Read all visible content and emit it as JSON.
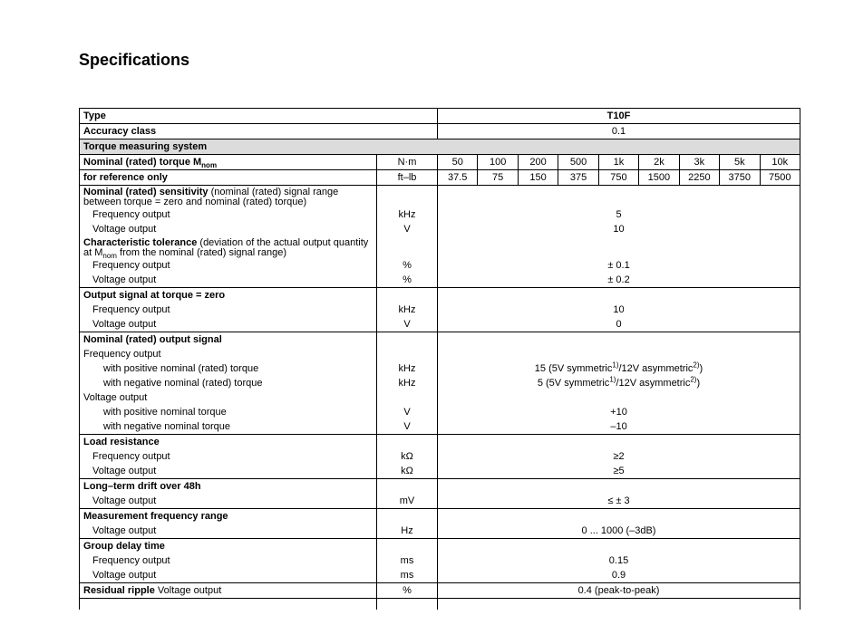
{
  "title": "Specifications",
  "type_row": {
    "label": "Type",
    "value": "T10F"
  },
  "accuracy_row": {
    "label": "Accuracy class",
    "value": "0.1"
  },
  "section": "Torque measuring system",
  "torque_row": {
    "label": [
      {
        "t": "Nominal (rated) torque M",
        "b": true
      },
      {
        "t": "nom",
        "b": true,
        "sub": true
      }
    ],
    "unit": "N·m",
    "values": [
      "50",
      "100",
      "200",
      "500",
      "1k",
      "2k",
      "3k",
      "5k",
      "10k"
    ]
  },
  "ref_row": {
    "label": [
      {
        "t": "for reference only",
        "b": true
      }
    ],
    "unit": "ft–lb",
    "values": [
      "37.5",
      "75",
      "150",
      "375",
      "750",
      "1500",
      "2250",
      "3750",
      "7500"
    ]
  },
  "blocks": [
    {
      "lines": [
        {
          "label": [
            {
              "t": "Nominal (rated) sensitivity",
              "b": true
            },
            {
              "t": " (nominal (rated) signal range between torque = zero and nominal (rated) torque)"
            }
          ],
          "wrap": true,
          "unit": "",
          "value": []
        },
        {
          "label": [
            {
              "t": "Frequency output"
            }
          ],
          "indent": 1,
          "unit": "kHz",
          "value": [
            {
              "t": "5"
            }
          ]
        },
        {
          "label": [
            {
              "t": "Voltage output"
            }
          ],
          "indent": 1,
          "unit": "V",
          "value": [
            {
              "t": "10"
            }
          ]
        },
        {
          "label": [
            {
              "t": "Characteristic tolerance",
              "b": true
            },
            {
              "t": " (deviation of the actual output quantity at M"
            },
            {
              "t": "nom",
              "sub": true
            },
            {
              "t": " from the nominal (rated) signal range)"
            }
          ],
          "wrap": true,
          "unit": "",
          "value": []
        },
        {
          "label": [
            {
              "t": "Frequency output"
            }
          ],
          "indent": 1,
          "unit": "%",
          "value": [
            {
              "t": "± 0.1"
            }
          ]
        },
        {
          "label": [
            {
              "t": "Voltage output"
            }
          ],
          "indent": 1,
          "unit": "%",
          "value": [
            {
              "t": "± 0.2"
            }
          ]
        }
      ]
    },
    {
      "lines": [
        {
          "label": [
            {
              "t": "Output signal at torque = zero",
              "b": true
            }
          ],
          "unit": "",
          "value": []
        },
        {
          "label": [
            {
              "t": "Frequency output"
            }
          ],
          "indent": 1,
          "unit": "kHz",
          "value": [
            {
              "t": "10"
            }
          ]
        },
        {
          "label": [
            {
              "t": "Voltage output"
            }
          ],
          "indent": 1,
          "unit": "V",
          "value": [
            {
              "t": "0"
            }
          ]
        }
      ]
    },
    {
      "lines": [
        {
          "label": [
            {
              "t": "Nominal (rated) output signal",
              "b": true
            }
          ],
          "unit": "",
          "value": []
        },
        {
          "label": [
            {
              "t": "Frequency output"
            }
          ],
          "unit": "",
          "value": []
        },
        {
          "label": [
            {
              "t": "with positive nominal (rated) torque"
            }
          ],
          "indent": 2,
          "unit": "kHz",
          "value": [
            {
              "t": "15 (5V symmetric"
            },
            {
              "t": "1)",
              "sup": true
            },
            {
              "t": "/12V asymmetric"
            },
            {
              "t": "2)",
              "sup": true
            },
            {
              "t": ")"
            }
          ]
        },
        {
          "label": [
            {
              "t": "with negative nominal (rated) torque"
            }
          ],
          "indent": 2,
          "unit": "kHz",
          "value": [
            {
              "t": "5 (5V symmetric"
            },
            {
              "t": "1)",
              "sup": true
            },
            {
              "t": "/12V asymmetric"
            },
            {
              "t": "2)",
              "sup": true
            },
            {
              "t": ")"
            }
          ]
        },
        {
          "label": [
            {
              "t": "Voltage output"
            }
          ],
          "unit": "",
          "value": []
        },
        {
          "label": [
            {
              "t": "with positive nominal torque"
            }
          ],
          "indent": 2,
          "unit": "V",
          "value": [
            {
              "t": "+10"
            }
          ]
        },
        {
          "label": [
            {
              "t": "with negative nominal torque"
            }
          ],
          "indent": 2,
          "unit": "V",
          "value": [
            {
              "t": "–10"
            }
          ]
        }
      ]
    },
    {
      "lines": [
        {
          "label": [
            {
              "t": "Load resistance",
              "b": true
            }
          ],
          "unit": "",
          "value": []
        },
        {
          "label": [
            {
              "t": "Frequency output"
            }
          ],
          "indent": 1,
          "unit": "kΩ",
          "value": [
            {
              "t": "≥2"
            }
          ]
        },
        {
          "label": [
            {
              "t": "Voltage output"
            }
          ],
          "indent": 1,
          "unit": "kΩ",
          "value": [
            {
              "t": "≥5"
            }
          ]
        }
      ]
    },
    {
      "lines": [
        {
          "label": [
            {
              "t": "Long–term drift over 48h",
              "b": true
            }
          ],
          "unit": "",
          "value": []
        },
        {
          "label": [
            {
              "t": "Voltage output"
            }
          ],
          "indent": 1,
          "unit": "mV",
          "value": [
            {
              "t": "≤ ± 3"
            }
          ]
        }
      ]
    },
    {
      "lines": [
        {
          "label": [
            {
              "t": "Measurement frequency range",
              "b": true
            }
          ],
          "unit": "",
          "value": []
        },
        {
          "label": [
            {
              "t": "Voltage output"
            }
          ],
          "indent": 1,
          "unit": "Hz",
          "value": [
            {
              "t": "0 ... 1000 (–3dB)"
            }
          ]
        }
      ]
    },
    {
      "lines": [
        {
          "label": [
            {
              "t": "Group delay time",
              "b": true
            }
          ],
          "unit": "",
          "value": []
        },
        {
          "label": [
            {
              "t": "Frequency output"
            }
          ],
          "indent": 1,
          "unit": "ms",
          "value": [
            {
              "t": "0.15"
            }
          ]
        },
        {
          "label": [
            {
              "t": "Voltage output"
            }
          ],
          "indent": 1,
          "unit": "ms",
          "value": [
            {
              "t": "0.9"
            }
          ]
        }
      ]
    },
    {
      "lines": [
        {
          "label": [
            {
              "t": "Residual ripple",
              "b": true
            },
            {
              "t": " Voltage output"
            }
          ],
          "unit": "%",
          "value": [
            {
              "t": "0.4 (peak-to-peak)"
            }
          ]
        }
      ]
    }
  ]
}
